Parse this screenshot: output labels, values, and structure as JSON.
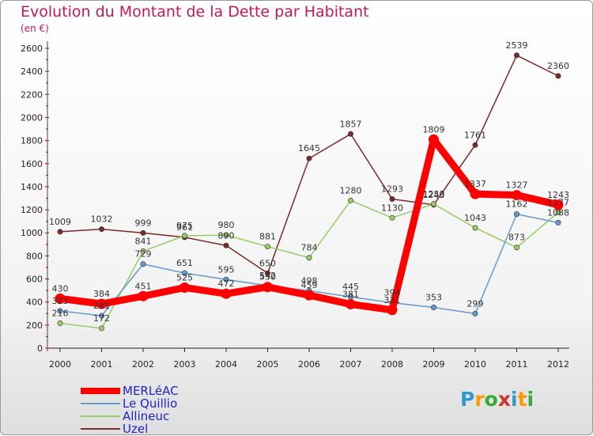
{
  "title": "Evolution du Montant de la Dette par Habitant",
  "subtitle": "(en €)",
  "logo": {
    "text": "Proxiti",
    "colors": [
      "#3399cc",
      "#ff9900",
      "#33aa33",
      "#cc3333",
      "#3399cc",
      "#ff9900",
      "#33aa33"
    ]
  },
  "chart_data": {
    "type": "line",
    "x": [
      "2000",
      "2001",
      "2002",
      "2003",
      "2004",
      "2005",
      "2006",
      "2007",
      "2008",
      "2009",
      "2010",
      "2011",
      "2012"
    ],
    "ylim": [
      0,
      2600
    ],
    "yticks": [
      0,
      200,
      400,
      600,
      800,
      1000,
      1200,
      1400,
      1600,
      1800,
      2000,
      2200,
      2400,
      2600
    ],
    "grid": false,
    "legend_position": "bottom-left",
    "series": [
      {
        "name": "MERLéAC",
        "color": "#ff0000",
        "values": [
          430,
          384,
          451,
          525,
          472,
          530,
          459,
          381,
          331,
          1809,
          1337,
          1327,
          1243
        ]
      },
      {
        "name": "Le Quillio",
        "color": "#6699cc",
        "values": [
          323,
          281,
          729,
          651,
          595,
          542,
          498,
          445,
          394,
          353,
          299,
          1162,
          1088
        ]
      },
      {
        "name": "Allineuc",
        "color": "#99cc66",
        "values": [
          216,
          172,
          841,
          975,
          980,
          881,
          784,
          1280,
          1130,
          1250,
          1043,
          873,
          1177
        ]
      },
      {
        "name": "Uzel",
        "color": "#7a2a2a",
        "values": [
          1009,
          1032,
          999,
          961,
          890,
          650,
          1645,
          1857,
          1293,
          1243,
          1761,
          2539,
          2360
        ]
      }
    ]
  }
}
